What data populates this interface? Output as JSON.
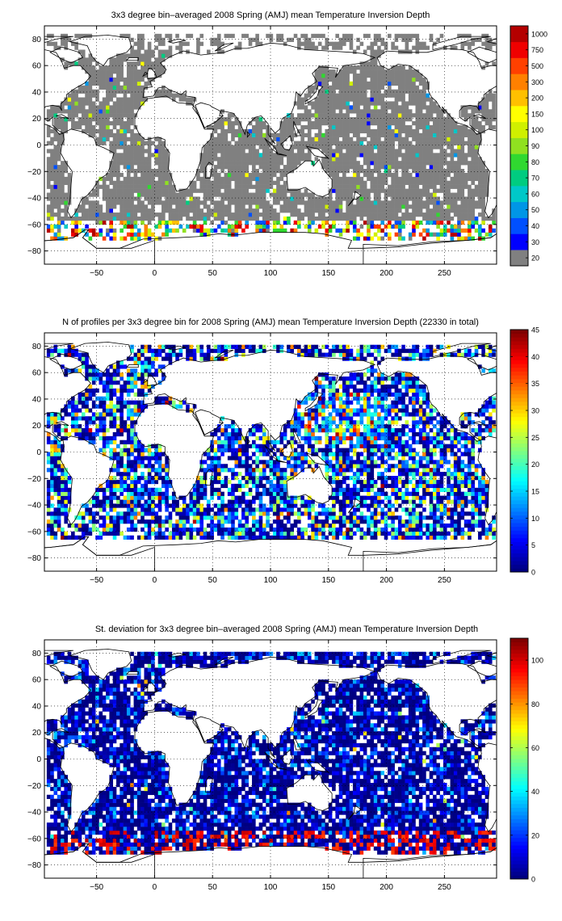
{
  "chart_data": [
    {
      "type": "heatmap",
      "title": "3x3 degree bin–averaged 2008 Spring (AMJ) mean Temperature Inversion Depth",
      "xlabel": "",
      "ylabel": "",
      "xlim": [
        -95,
        295
      ],
      "ylim": [
        -90,
        90
      ],
      "xticks": [
        -50,
        0,
        50,
        100,
        150,
        200,
        250
      ],
      "yticks": [
        -80,
        -60,
        -40,
        -20,
        0,
        20,
        40,
        60,
        80
      ],
      "grid": true,
      "bin_size_deg": 3,
      "colorbar": {
        "scale": "categorical",
        "ticks": [
          "20",
          "30",
          "40",
          "50",
          "60",
          "70",
          "80",
          "90",
          "100",
          "150",
          "200",
          "300",
          "500",
          "750",
          "1000"
        ],
        "colors": [
          "#808080",
          "#0000ff",
          "#0050ff",
          "#0096e6",
          "#00c8c8",
          "#00cc80",
          "#30d830",
          "#90e020",
          "#d0f000",
          "#ffff00",
          "#ffc000",
          "#ff8000",
          "#ff4000",
          "#f00000",
          "#b40000"
        ]
      },
      "dominant_value_color": "#808080"
    },
    {
      "type": "heatmap",
      "title": "N of profiles per 3x3 degree bin for 2008 Spring (AMJ) mean Temperature Inversion Depth  (22330 in total)",
      "xlabel": "",
      "ylabel": "",
      "xlim": [
        -95,
        295
      ],
      "ylim": [
        -90,
        90
      ],
      "xticks": [
        -50,
        0,
        50,
        100,
        150,
        200,
        250
      ],
      "yticks": [
        -80,
        -60,
        -40,
        -20,
        0,
        20,
        40,
        60,
        80
      ],
      "grid": true,
      "bin_size_deg": 3,
      "total_profiles": 22330,
      "colorbar": {
        "scale": "linear",
        "min": 0,
        "max": 45,
        "ticks": [
          "0",
          "5",
          "10",
          "15",
          "20",
          "25",
          "30",
          "35",
          "40",
          "45"
        ],
        "colormap": "jet"
      }
    },
    {
      "type": "heatmap",
      "title": "St. deviation for 3x3 degree bin–averaged 2008 Spring (AMJ) mean Temperature Inversion Depth",
      "xlabel": "",
      "ylabel": "",
      "xlim": [
        -95,
        295
      ],
      "ylim": [
        -90,
        90
      ],
      "xticks": [
        -50,
        0,
        50,
        100,
        150,
        200,
        250
      ],
      "yticks": [
        -80,
        -60,
        -40,
        -20,
        0,
        20,
        40,
        60,
        80
      ],
      "grid": true,
      "bin_size_deg": 3,
      "colorbar": {
        "scale": "linear",
        "min": 0,
        "max": 110,
        "ticks": [
          "0",
          "20",
          "40",
          "60",
          "80",
          "100"
        ],
        "colormap": "jet"
      }
    }
  ]
}
